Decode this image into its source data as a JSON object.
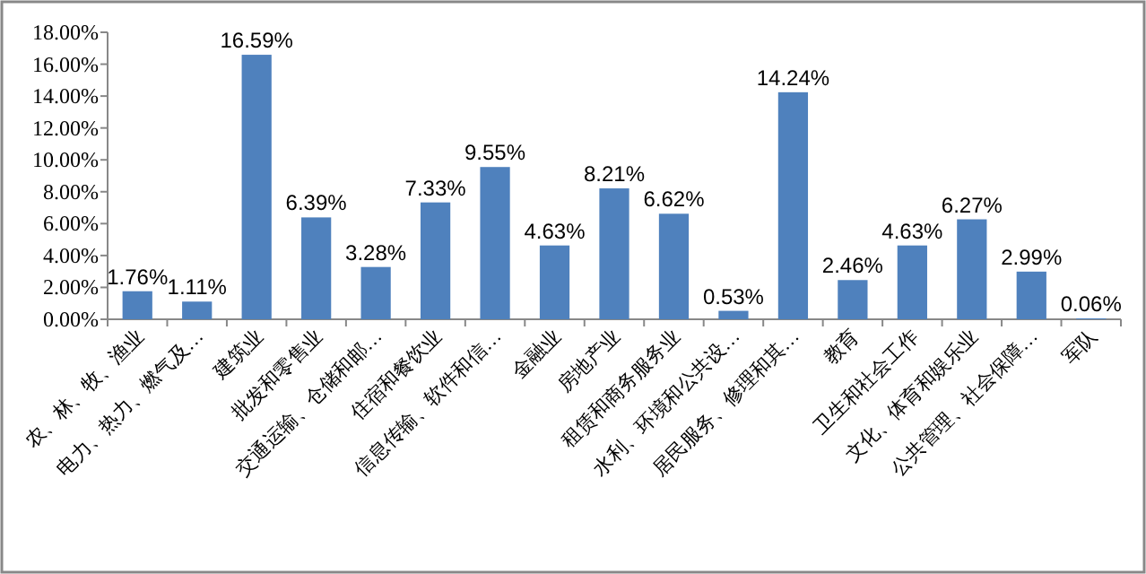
{
  "chart_data": {
    "type": "bar",
    "categories": [
      "农、林、牧、渔业",
      "电力、热力、燃气及…",
      "建筑业",
      "批发和零售业",
      "交通运输、仓储和邮…",
      "住宿和餐饮业",
      "信息传输、软件和信…",
      "金融业",
      "房地产业",
      "租赁和商务服务业",
      "水利、环境和公共设…",
      "居民服务、修理和其…",
      "教育",
      "卫生和社会工作",
      "文化、体育和娱乐业",
      "公共管理、社会保障…",
      "军队"
    ],
    "values": [
      1.76,
      1.11,
      16.59,
      6.39,
      3.28,
      7.33,
      9.55,
      4.63,
      8.21,
      6.62,
      0.53,
      14.24,
      2.46,
      4.63,
      6.27,
      2.99,
      0.06
    ],
    "value_labels": [
      "1.76%",
      "1.11%",
      "16.59%",
      "6.39%",
      "3.28%",
      "7.33%",
      "9.55%",
      "4.63%",
      "8.21%",
      "6.62%",
      "0.53%",
      "14.24%",
      "2.46%",
      "4.63%",
      "6.27%",
      "2.99%",
      "0.06%"
    ],
    "color": "#4f81bd",
    "ylim": [
      0,
      18
    ],
    "yticks": [
      {
        "value": 0,
        "label": "0.00%"
      },
      {
        "value": 2,
        "label": "2.00%"
      },
      {
        "value": 4,
        "label": "4.00%"
      },
      {
        "value": 6,
        "label": "6.00%"
      },
      {
        "value": 8,
        "label": "8.00%"
      },
      {
        "value": 10,
        "label": "10.00%"
      },
      {
        "value": 12,
        "label": "12.00%"
      },
      {
        "value": 14,
        "label": "14.00%"
      },
      {
        "value": 16,
        "label": "16.00%"
      },
      {
        "value": 18,
        "label": "18.00%"
      }
    ],
    "grid": false
  }
}
